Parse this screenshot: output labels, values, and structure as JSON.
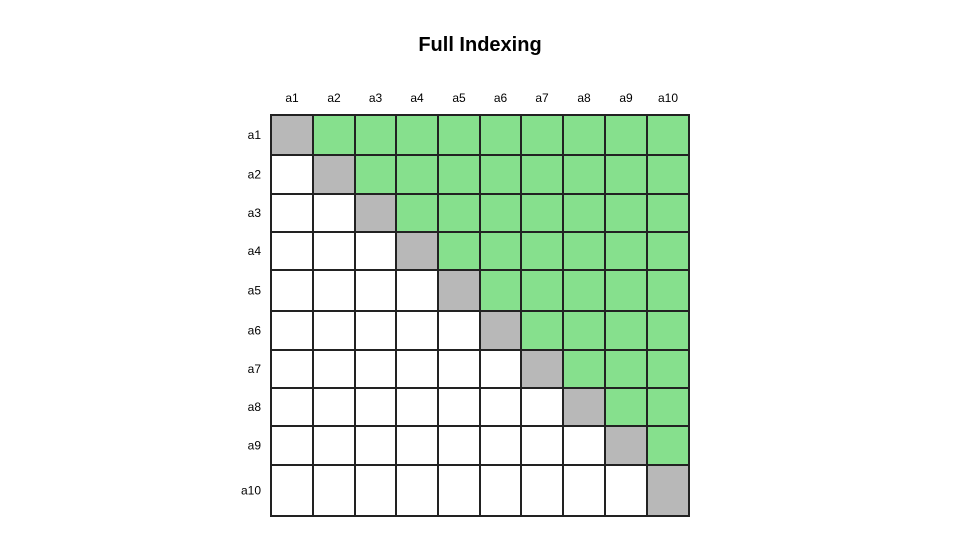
{
  "title": "Full Indexing",
  "columns": [
    "a1",
    "a2",
    "a3",
    "a4",
    "a5",
    "a6",
    "a7",
    "a8",
    "a9",
    "a10"
  ],
  "rows": [
    "a1",
    "a2",
    "a3",
    "a4",
    "a5",
    "a6",
    "a7",
    "a8",
    "a9",
    "a10"
  ],
  "colors": {
    "diagonal": "#b8b8b8",
    "upper": "#86e08d",
    "lower": "#ffffff",
    "border": "#222222"
  }
}
